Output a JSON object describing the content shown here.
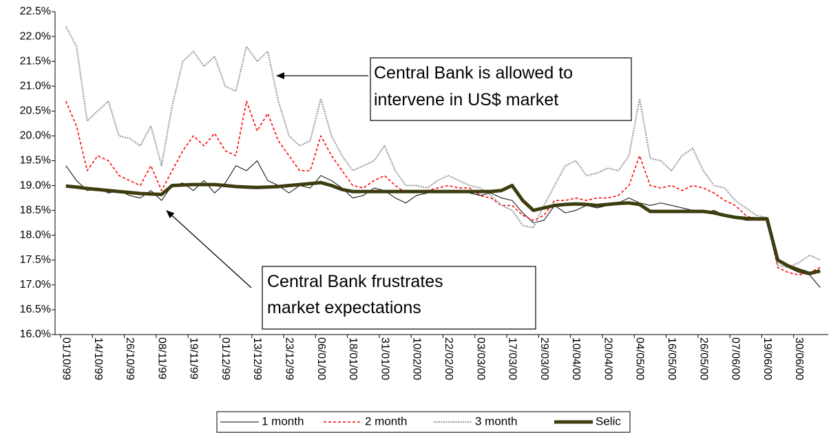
{
  "chart_data": {
    "type": "line",
    "categories": [
      "01/10/99",
      null,
      null,
      "14/10/99",
      null,
      null,
      "26/10/99",
      null,
      null,
      "08/11/99",
      null,
      null,
      "19/11/99",
      null,
      null,
      "01/12/99",
      null,
      null,
      "13/12/99",
      null,
      null,
      "23/12/99",
      null,
      null,
      "06/01/00",
      null,
      null,
      "18/01/00",
      null,
      null,
      "31/01/00",
      null,
      null,
      "10/02/00",
      null,
      null,
      "22/02/00",
      null,
      null,
      "03/03/00",
      null,
      null,
      "17/03/00",
      null,
      null,
      "29/03/00",
      null,
      null,
      "10/04/00",
      null,
      null,
      "20/04/00",
      null,
      null,
      "04/05/00",
      null,
      null,
      "16/05/00",
      null,
      null,
      "26/05/00",
      null,
      null,
      "07/06/00",
      null,
      null,
      "19/06/00",
      null,
      null,
      "30/06/00",
      null,
      null
    ],
    "series": [
      {
        "name": "1 month",
        "color": "#000000",
        "values": [
          19.4,
          19.1,
          18.9,
          18.95,
          18.85,
          18.9,
          18.8,
          18.75,
          18.9,
          18.7,
          19.0,
          19.05,
          18.9,
          19.1,
          18.85,
          19.05,
          19.4,
          19.3,
          19.5,
          19.1,
          19.0,
          18.85,
          19.0,
          18.95,
          19.2,
          19.1,
          18.95,
          18.75,
          18.8,
          18.95,
          18.9,
          18.75,
          18.65,
          18.8,
          18.85,
          18.9,
          18.9,
          18.9,
          18.85,
          18.8,
          18.85,
          18.75,
          18.7,
          18.45,
          18.25,
          18.3,
          18.6,
          18.45,
          18.5,
          18.6,
          18.55,
          18.6,
          18.65,
          18.75,
          18.65,
          18.6,
          18.65,
          18.6,
          18.55,
          18.5,
          18.45,
          18.5,
          18.4,
          18.35,
          18.3,
          18.3,
          18.3,
          17.5,
          17.35,
          17.25,
          17.2,
          16.95
        ]
      },
      {
        "name": "2 month",
        "color": "#ff0000",
        "values": [
          20.7,
          20.2,
          19.3,
          19.6,
          19.5,
          19.2,
          19.1,
          19.0,
          19.4,
          18.9,
          19.3,
          19.7,
          20.0,
          19.8,
          20.05,
          19.7,
          19.6,
          20.7,
          20.1,
          20.45,
          19.9,
          19.6,
          19.3,
          19.3,
          20.0,
          19.6,
          19.3,
          19.0,
          18.95,
          19.1,
          19.2,
          19.0,
          18.85,
          18.9,
          18.9,
          18.95,
          19.0,
          18.95,
          18.95,
          18.8,
          18.75,
          18.6,
          18.6,
          18.4,
          18.3,
          18.4,
          18.7,
          18.7,
          18.75,
          18.7,
          18.75,
          18.75,
          18.8,
          19.0,
          19.6,
          19.0,
          18.95,
          19.0,
          18.9,
          19.0,
          18.95,
          18.85,
          18.7,
          18.6,
          18.4,
          18.3,
          18.3,
          17.35,
          17.25,
          17.2,
          17.25,
          17.35
        ]
      },
      {
        "name": "3 month",
        "color": "#9a9a9a",
        "values": [
          22.2,
          21.8,
          20.3,
          20.5,
          20.7,
          20.0,
          19.95,
          19.8,
          20.2,
          19.4,
          20.6,
          21.5,
          21.7,
          21.4,
          21.6,
          21.0,
          20.9,
          21.8,
          21.5,
          21.7,
          20.7,
          20.0,
          19.8,
          19.9,
          20.75,
          20.0,
          19.6,
          19.3,
          19.4,
          19.5,
          19.8,
          19.3,
          19.0,
          19.0,
          18.95,
          19.1,
          19.2,
          19.1,
          19.0,
          18.95,
          18.8,
          18.6,
          18.5,
          18.2,
          18.15,
          18.6,
          19.0,
          19.4,
          19.5,
          19.2,
          19.25,
          19.35,
          19.3,
          19.6,
          20.75,
          19.55,
          19.5,
          19.3,
          19.6,
          19.75,
          19.3,
          19.0,
          18.95,
          18.7,
          18.55,
          18.4,
          18.35,
          17.4,
          17.35,
          17.45,
          17.6,
          17.5
        ]
      },
      {
        "name": "Selic",
        "color": "#3d3d0f",
        "values": [
          18.99,
          18.97,
          18.94,
          18.92,
          18.9,
          18.88,
          18.86,
          18.84,
          18.83,
          18.82,
          19.0,
          19.01,
          19.02,
          19.02,
          19.02,
          19.0,
          18.98,
          18.97,
          18.96,
          18.97,
          18.98,
          19.0,
          19.02,
          19.04,
          19.06,
          19.0,
          18.92,
          18.88,
          18.88,
          18.88,
          18.88,
          18.88,
          18.88,
          18.88,
          18.88,
          18.88,
          18.88,
          18.88,
          18.88,
          18.88,
          18.88,
          18.9,
          19.0,
          18.7,
          18.5,
          18.55,
          18.6,
          18.62,
          18.63,
          18.62,
          18.6,
          18.62,
          18.64,
          18.65,
          18.62,
          18.48,
          18.48,
          18.48,
          18.48,
          18.48,
          18.48,
          18.45,
          18.4,
          18.36,
          18.34,
          18.33,
          18.33,
          17.5,
          17.38,
          17.3,
          17.23,
          17.28
        ]
      }
    ],
    "ylim": [
      16,
      22.5
    ],
    "yticks": [
      {
        "value": 16,
        "label": "16.0%"
      },
      {
        "value": 16.5,
        "label": "16.5%"
      },
      {
        "value": 17,
        "label": "17.0%"
      },
      {
        "value": 17.5,
        "label": "17.5%"
      },
      {
        "value": 18,
        "label": "18.0%"
      },
      {
        "value": 18.5,
        "label": "18.5%"
      },
      {
        "value": 19,
        "label": "19.0%"
      },
      {
        "value": 19.5,
        "label": "19.5%"
      },
      {
        "value": 20,
        "label": "20.0%"
      },
      {
        "value": 20.5,
        "label": "20.5%"
      },
      {
        "value": 21,
        "label": "21.0%"
      },
      {
        "value": 21.5,
        "label": "21.5%"
      },
      {
        "value": 22,
        "label": "22.0%"
      },
      {
        "value": 22.5,
        "label": "22.5%"
      }
    ],
    "annotations": [
      {
        "lines": [
          "Central Bank is allowed to",
          "intervene in US$ market"
        ]
      },
      {
        "lines": [
          "Central Bank frustrates",
          "market expectations"
        ]
      }
    ],
    "legend": "bottom"
  }
}
